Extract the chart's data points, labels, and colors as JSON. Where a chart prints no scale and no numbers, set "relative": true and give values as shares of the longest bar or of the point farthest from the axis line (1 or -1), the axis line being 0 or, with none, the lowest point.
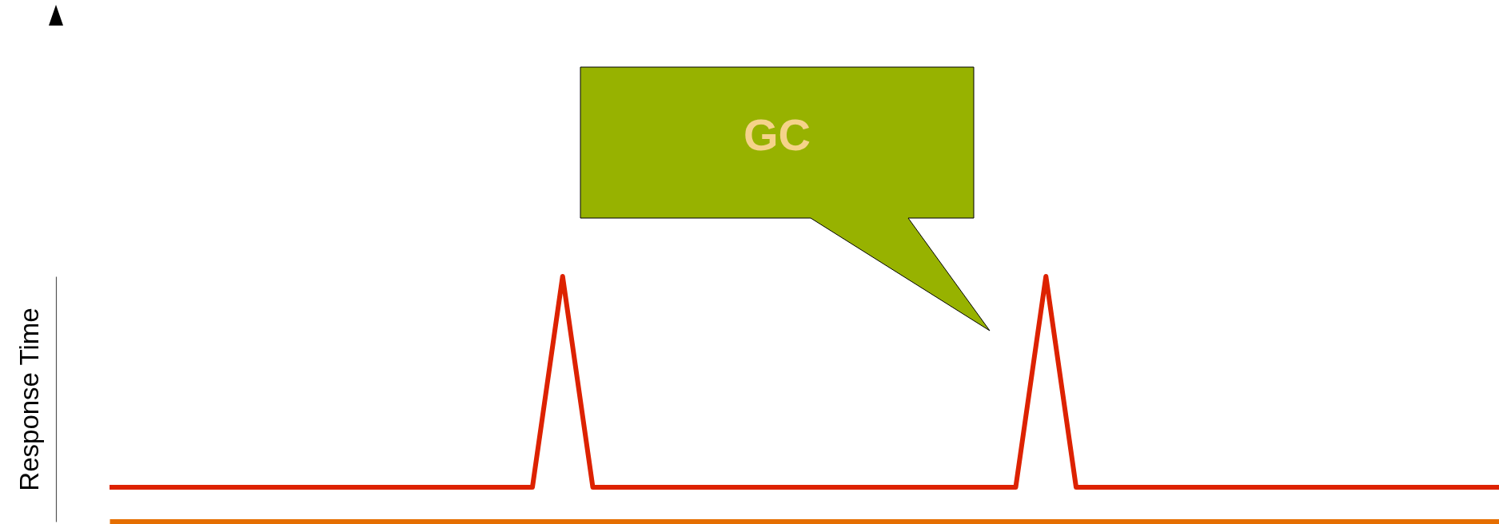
{
  "chart_data": {
    "type": "line",
    "relative": true,
    "ylabel": "Response Time",
    "categories": [
      null,
      null,
      null,
      null,
      null,
      null,
      null,
      null,
      null,
      null,
      null,
      null,
      null,
      null,
      null,
      null,
      null,
      null,
      null,
      null,
      null,
      null,
      null,
      null,
      null,
      null,
      null,
      null,
      null,
      null,
      null,
      null,
      null,
      null,
      null,
      null,
      null,
      null,
      null,
      null,
      null,
      null,
      null,
      null,
      null,
      null,
      null
    ],
    "series": [
      {
        "color": "#dd2200",
        "values": [
          0.14,
          0.14,
          0.14,
          0.14,
          0.14,
          0.14,
          0.14,
          0.14,
          0.14,
          0.14,
          0.14,
          0.14,
          0.14,
          0.14,
          0.14,
          1,
          0.14,
          0.14,
          0.14,
          0.14,
          0.14,
          0.14,
          0.14,
          0.14,
          0.14,
          0.14,
          0.14,
          0.14,
          0.14,
          0.14,
          0.14,
          1,
          0.14,
          0.14,
          0.14,
          0.14,
          0.14,
          0.14,
          0.14,
          0.14,
          0.14,
          0.14,
          0.14,
          0.14,
          0.14,
          0.14,
          0.14
        ]
      }
    ],
    "annotations": [
      "GC"
    ]
  }
}
